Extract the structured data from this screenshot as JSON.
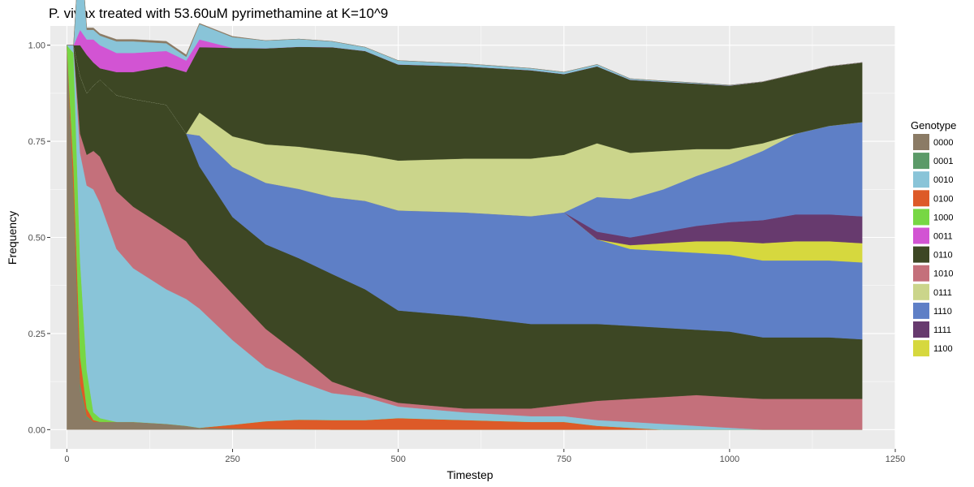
{
  "chart_data": {
    "type": "area",
    "title": "P. vivax treated with 53.60uM pyrimethamine at K=10^9",
    "xlabel": "Timestep",
    "ylabel": "Frequency",
    "xlim": [
      -25,
      1250
    ],
    "ylim": [
      -0.05,
      1.05
    ],
    "x_ticks": [
      0,
      250,
      500,
      750,
      1000,
      1250
    ],
    "y_ticks": [
      0.0,
      0.25,
      0.5,
      0.75,
      1.0
    ],
    "x_tick_labels": [
      "0",
      "250",
      "500",
      "750",
      "1000",
      "1250"
    ],
    "y_tick_labels": [
      "0.00",
      "0.25",
      "0.50",
      "0.75",
      "1.00"
    ],
    "grid": true,
    "legend_title": "Genotype",
    "legend_position": "right",
    "x": [
      0,
      10,
      20,
      30,
      40,
      50,
      75,
      100,
      150,
      180,
      200,
      250,
      300,
      350,
      400,
      450,
      500,
      600,
      700,
      750,
      800,
      850,
      900,
      950,
      1000,
      1050,
      1100,
      1150,
      1200
    ],
    "series": [
      {
        "name": "0000",
        "color": "#8b7b65",
        "values": [
          1.0,
          0.6,
          0.1,
          0.03,
          0.02,
          0.02,
          0.02,
          0.02,
          0.015,
          0.01,
          0.005,
          0.003,
          0.002,
          0.001,
          0,
          0,
          0,
          0,
          0,
          0,
          0,
          0,
          0,
          0,
          0,
          0,
          0,
          0,
          0
        ]
      },
      {
        "name": "0001",
        "color": "#5b9a68",
        "values": [
          0,
          0.02,
          0.02,
          0.005,
          0,
          0,
          0,
          0,
          0,
          0,
          0,
          0,
          0,
          0,
          0,
          0,
          0,
          0,
          0,
          0,
          0,
          0,
          0,
          0,
          0,
          0,
          0,
          0,
          0
        ]
      },
      {
        "name": "0100",
        "color": "#dd5a28",
        "values": [
          0,
          0.06,
          0.07,
          0.02,
          0.005,
          0,
          0,
          0,
          0,
          0,
          0,
          0.01,
          0.02,
          0.025,
          0.025,
          0.025,
          0.03,
          0.025,
          0.02,
          0.02,
          0.01,
          0.005,
          0,
          0,
          0,
          0,
          0,
          0,
          0
        ]
      },
      {
        "name": "1000",
        "color": "#77d744",
        "values": [
          0,
          0.3,
          0.25,
          0.1,
          0.02,
          0.01,
          0,
          0,
          0,
          0,
          0,
          0,
          0,
          0,
          0,
          0,
          0,
          0,
          0,
          0,
          0,
          0,
          0,
          0,
          0,
          0,
          0,
          0,
          0
        ]
      },
      {
        "name": "0010",
        "color": "#89c4d8",
        "values": [
          0,
          0.02,
          0.28,
          0.48,
          0.58,
          0.56,
          0.45,
          0.4,
          0.35,
          0.33,
          0.31,
          0.22,
          0.14,
          0.1,
          0.07,
          0.06,
          0.03,
          0.02,
          0.015,
          0.015,
          0.015,
          0.015,
          0.015,
          0.01,
          0.005,
          0,
          0,
          0,
          0
        ]
      },
      {
        "name": "1010",
        "color": "#c4707b",
        "values": [
          0,
          0,
          0.05,
          0.08,
          0.1,
          0.12,
          0.15,
          0.16,
          0.16,
          0.15,
          0.13,
          0.12,
          0.1,
          0.07,
          0.03,
          0.01,
          0.01,
          0.01,
          0.02,
          0.03,
          0.05,
          0.06,
          0.07,
          0.08,
          0.08,
          0.08,
          0.08,
          0.08,
          0.08
        ]
      },
      {
        "name": "0110",
        "color": "#3d4724",
        "values": [
          0,
          0,
          0.15,
          0.16,
          0.17,
          0.2,
          0.25,
          0.28,
          0.32,
          0.28,
          0.24,
          0.2,
          0.22,
          0.25,
          0.28,
          0.27,
          0.24,
          0.24,
          0.22,
          0.21,
          0.2,
          0.19,
          0.18,
          0.17,
          0.17,
          0.16,
          0.16,
          0.16,
          0.155
        ]
      },
      {
        "name": "1110",
        "color": "#5e7fc6",
        "values": [
          0,
          0,
          0,
          0,
          0,
          0,
          0,
          0,
          0,
          0,
          0.08,
          0.13,
          0.16,
          0.18,
          0.2,
          0.23,
          0.26,
          0.27,
          0.28,
          0.29,
          0.22,
          0.2,
          0.2,
          0.2,
          0.2,
          0.2,
          0.2,
          0.2,
          0.2
        ]
      },
      {
        "name": "1100",
        "color": "#d6d83e",
        "values": [
          0,
          0,
          0,
          0,
          0,
          0,
          0,
          0,
          0,
          0,
          0,
          0,
          0,
          0,
          0,
          0,
          0,
          0,
          0,
          0,
          0,
          0.01,
          0.02,
          0.03,
          0.035,
          0.045,
          0.05,
          0.05,
          0.05
        ]
      },
      {
        "name": "1111",
        "color": "#673a6e",
        "values": [
          0,
          0,
          0,
          0,
          0,
          0,
          0,
          0,
          0,
          0,
          0,
          0,
          0,
          0,
          0,
          0,
          0,
          0,
          0,
          0,
          0.02,
          0.02,
          0.03,
          0.04,
          0.05,
          0.06,
          0.07,
          0.07,
          0.07
        ]
      },
      {
        "name": "1110",
        "color": "#5e7fc6",
        "values": [
          0,
          0,
          0,
          0,
          0,
          0,
          0,
          0,
          0,
          0,
          0,
          0,
          0,
          0,
          0,
          0,
          0,
          0,
          0,
          0,
          0.09,
          0.1,
          0.11,
          0.13,
          0.15,
          0.18,
          0.21,
          0.23,
          0.245
        ]
      },
      {
        "name": "0111",
        "color": "#cbd58b",
        "values": [
          0,
          0,
          0,
          0,
          0,
          0,
          0,
          0,
          0,
          0,
          0.06,
          0.08,
          0.1,
          0.11,
          0.12,
          0.12,
          0.13,
          0.14,
          0.15,
          0.15,
          0.14,
          0.12,
          0.1,
          0.07,
          0.04,
          0.02,
          0,
          0,
          0
        ]
      },
      {
        "name": "0110",
        "color": "#3d4724",
        "values": [
          0,
          0,
          0.08,
          0.1,
          0.06,
          0.03,
          0.06,
          0.07,
          0.1,
          0.16,
          0.17,
          0.23,
          0.25,
          0.26,
          0.27,
          0.27,
          0.25,
          0.24,
          0.23,
          0.21,
          0.2,
          0.19,
          0.18,
          0.17,
          0.165,
          0.16,
          0.155,
          0.155,
          0.155
        ]
      },
      {
        "name": "0011",
        "color": "#d254d3",
        "values": [
          0,
          0,
          0.04,
          0.04,
          0.06,
          0.06,
          0.05,
          0.05,
          0.04,
          0.03,
          0.02,
          0.0,
          0,
          0,
          0,
          0,
          0,
          0,
          0,
          0,
          0,
          0,
          0,
          0,
          0,
          0,
          0,
          0,
          0
        ]
      },
      {
        "name": "0010",
        "color": "#89c4d8",
        "values": [
          0,
          0,
          0.24,
          0.025,
          0.025,
          0.025,
          0.03,
          0.03,
          0.02,
          0.01,
          0.04,
          0.028,
          0.02,
          0.02,
          0.015,
          0.01,
          0.01,
          0.007,
          0.005,
          0.005,
          0.005,
          0.003,
          0.002,
          0.002,
          0.001,
          0,
          0,
          0,
          0
        ]
      },
      {
        "name": "0000",
        "color": "#8b7b65",
        "values": [
          0,
          0,
          0,
          0.005,
          0.005,
          0.005,
          0.005,
          0.005,
          0.005,
          0.005,
          0.002,
          0.002,
          0,
          0,
          0,
          0,
          0,
          0,
          0,
          0,
          0,
          0,
          0,
          0,
          0,
          0,
          0,
          0,
          0
        ]
      }
    ],
    "legend": [
      {
        "name": "0000",
        "color": "#8b7b65"
      },
      {
        "name": "0001",
        "color": "#5b9a68"
      },
      {
        "name": "0010",
        "color": "#89c4d8"
      },
      {
        "name": "0100",
        "color": "#dd5a28"
      },
      {
        "name": "1000",
        "color": "#77d744"
      },
      {
        "name": "0011",
        "color": "#d254d3"
      },
      {
        "name": "0110",
        "color": "#3d4724"
      },
      {
        "name": "1010",
        "color": "#c4707b"
      },
      {
        "name": "0111",
        "color": "#cbd58b"
      },
      {
        "name": "1110",
        "color": "#5e7fc6"
      },
      {
        "name": "1111",
        "color": "#673a6e"
      },
      {
        "name": "1100",
        "color": "#d6d83e"
      }
    ],
    "panel_color": "#ebebeb",
    "grid_color": "#ffffff"
  }
}
